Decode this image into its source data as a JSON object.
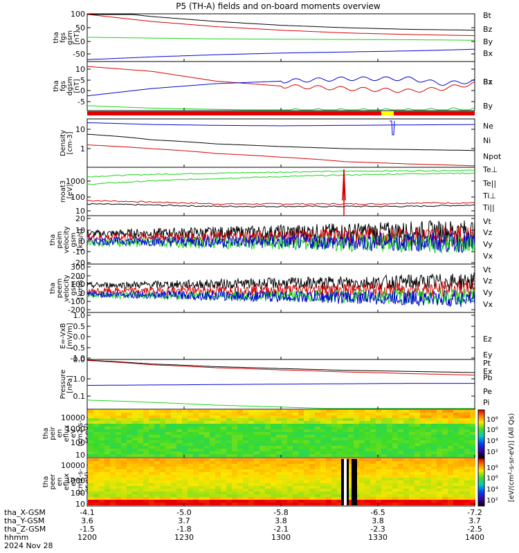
{
  "title": "P5 (TH-A) fields and on-board moments overview",
  "colors": {
    "black": "#000000",
    "red": "#d40000",
    "green": "#18d418",
    "blue": "#0000d4"
  },
  "panels": [
    {
      "id": "fgs_gsm",
      "ylabel": [
        "tha",
        "fgs",
        "gsm",
        "[nT]"
      ],
      "ticks": [
        "100",
        "50",
        "0",
        "-50"
      ],
      "legend": [
        {
          "text": "Bt",
          "color": "#000000"
        },
        {
          "text": "Bz",
          "color": "#d40000"
        },
        {
          "text": "By",
          "color": "#18d418"
        },
        {
          "text": "Bx",
          "color": "#0000d4"
        }
      ]
    },
    {
      "id": "fgs_dbgsm",
      "ylabel": [
        "tha",
        "fgs",
        "dgsm",
        "[nT]"
      ],
      "ticks": [
        "10",
        "5",
        "0",
        "-5"
      ],
      "legend": [
        {
          "text": "Bz",
          "color": "#d40000"
        },
        {
          "text": "Bx",
          "color": "#000000"
        },
        {
          "text": "By",
          "color": "#18d418"
        }
      ]
    },
    {
      "id": "density",
      "ylabel": [
        "Density",
        "[cm-3]"
      ],
      "ticks": [
        "10",
        "1"
      ],
      "legend": [
        {
          "text": "Ne",
          "color": "#d40000"
        },
        {
          "text": "Ni",
          "color": "#000000"
        },
        {
          "text": "Npot",
          "color": "#0000d4"
        }
      ]
    },
    {
      "id": "temperature",
      "ylabel": [
        "moat3",
        "[eV]"
      ],
      "ticks": [
        "1000",
        "100",
        "10"
      ],
      "legend": [
        {
          "text": "Te⊥",
          "color": "#d40000"
        },
        {
          "text": "Te||",
          "color": "#000000"
        },
        {
          "text": "Ti⊥",
          "color": "#18d418"
        },
        {
          "text": "Ti||",
          "color": "#18d418"
        }
      ]
    },
    {
      "id": "peim_velocity",
      "ylabel": [
        "tha",
        "peim",
        "velocity",
        "gsm",
        "[km/s]"
      ],
      "ticks": [
        "20",
        "10",
        "0",
        "-10",
        "-20"
      ],
      "legend": [
        {
          "text": "Vt",
          "color": "#000000"
        },
        {
          "text": "Vz",
          "color": "#d40000"
        },
        {
          "text": "Vy",
          "color": "#18d418"
        },
        {
          "text": "Vx",
          "color": "#0000d4"
        }
      ]
    },
    {
      "id": "peem_velocity",
      "ylabel": [
        "tha",
        "peem",
        "velocity",
        "gsm",
        "[km/s]"
      ],
      "ticks": [
        "300",
        "200",
        "100",
        "0",
        "-100",
        "-200"
      ],
      "legend": [
        {
          "text": "Vt",
          "color": "#000000"
        },
        {
          "text": "Vz",
          "color": "#d40000"
        },
        {
          "text": "Vy",
          "color": "#18d418"
        },
        {
          "text": "Vx",
          "color": "#0000d4"
        }
      ]
    },
    {
      "id": "efield",
      "ylabel": [
        "E=-VxB",
        "[mV/m]"
      ],
      "ticks": [
        "1.0",
        "0.5",
        "0.0",
        "-0.5",
        "-1.0"
      ],
      "legend": [
        {
          "text": "Ez",
          "color": "#d40000"
        },
        {
          "text": "Ey",
          "color": "#18d418"
        },
        {
          "text": "Ex",
          "color": "#0000d4"
        }
      ]
    },
    {
      "id": "pressure",
      "ylabel": [
        "Pressure",
        "[nPa]"
      ],
      "ticks": [
        "0.0",
        "1.0",
        "0.1"
      ],
      "legend": [
        {
          "text": "Pt",
          "color": "#000000"
        },
        {
          "text": "Pb",
          "color": "#d40000"
        },
        {
          "text": "Pe",
          "color": "#18d418"
        },
        {
          "text": "Pi",
          "color": "#0000d4"
        }
      ]
    },
    {
      "id": "peir_spec",
      "ylabel": [
        "tha",
        "peir",
        "en",
        "eflux",
        "eV",
        "(cm2-s-",
        "sr-eV)"
      ],
      "ticks": [
        "10000",
        "1000",
        "100",
        "10"
      ],
      "legend": []
    },
    {
      "id": "peer_spec",
      "ylabel": [
        "tha",
        "peer",
        "en",
        "eflux",
        "eV",
        "(cm2-s-",
        "sr-eV)"
      ],
      "ticks": [
        "10000",
        "1000",
        "100",
        "10"
      ],
      "legend": []
    }
  ],
  "colorbar": {
    "upper_ticks": [
      "10⁸",
      "10⁶",
      "10⁴",
      "10²"
    ],
    "lower_ticks": [
      "10⁸",
      "10⁶",
      "10⁴",
      "10²"
    ],
    "label": "[eV/(cm²-s-sr-eV)] (All Qs)"
  },
  "xaxis": {
    "labels": [
      "tha_X-GSM",
      "tha_Y-GSM",
      "tha_Z-GSM",
      "hhmm",
      "2024 Nov 28"
    ],
    "columns": [
      {
        "x": "-4.1",
        "y": "3.6",
        "z": "-1.5",
        "hhmm": "1200"
      },
      {
        "x": "-5.0",
        "y": "3.7",
        "z": "-1.8",
        "hhmm": "1230"
      },
      {
        "x": "-5.8",
        "y": "3.8",
        "z": "-2.1",
        "hhmm": "1300"
      },
      {
        "x": "-6.5",
        "y": "3.8",
        "z": "-2.3",
        "hhmm": "1330"
      },
      {
        "x": "-7.2",
        "y": "3.7",
        "z": "-2.5",
        "hhmm": "1400"
      }
    ]
  },
  "chart_data": {
    "type": "line",
    "time_range": [
      "12:00",
      "14:00"
    ],
    "series_panels": [
      {
        "panel": "fgs_gsm",
        "ylim": [
          -75,
          100
        ],
        "series": [
          {
            "name": "Bt",
            "x_min": [
              0,
              20,
              40,
              60,
              80,
              100,
              120
            ],
            "values": [
              115,
              90,
              72,
              58,
              49,
              43,
              40
            ]
          },
          {
            "name": "Bz",
            "x_min": [
              0,
              20,
              40,
              60,
              80,
              100,
              120
            ],
            "values": [
              98,
              72,
              53,
              40,
              30,
              24,
              20
            ]
          },
          {
            "name": "By",
            "x_min": [
              0,
              20,
              40,
              60,
              80,
              100,
              120
            ],
            "values": [
              14,
              11,
              8,
              7,
              6,
              5,
              3
            ]
          },
          {
            "name": "Bx",
            "x_min": [
              0,
              20,
              40,
              60,
              80,
              100,
              120
            ],
            "values": [
              -68,
              -58,
              -50,
              -44,
              -40,
              -36,
              -30
            ]
          }
        ]
      },
      {
        "panel": "fgs_dbgsm",
        "ylim": [
          -8,
          12
        ],
        "series": [
          {
            "name": "Bz",
            "x_min": [
              0,
              20,
              40,
              60,
              80,
              100,
              110,
              120
            ],
            "values": [
              10,
              8,
              4,
              2,
              1,
              0,
              1,
              3
            ]
          },
          {
            "name": "Bx",
            "x_min": [
              0,
              20,
              40,
              60,
              80,
              100,
              110,
              120
            ],
            "values": [
              -2,
              1,
              3,
              4,
              5,
              5,
              3,
              4
            ]
          },
          {
            "name": "By",
            "x_min": [
              0,
              20,
              40,
              60,
              80,
              100,
              120
            ],
            "values": [
              -6,
              -7,
              -7.5,
              -8,
              -8,
              -8,
              -7.5
            ]
          }
        ]
      },
      {
        "panel": "density",
        "ylim": [
          0.1,
          40
        ],
        "series": [
          {
            "name": "Ne",
            "x_min": [
              0,
              20,
              40,
              60,
              80,
              100,
              120
            ],
            "values": [
              1.6,
              1.0,
              0.55,
              0.35,
              0.2,
              0.15,
              0.12
            ]
          },
          {
            "name": "Ni",
            "x_min": [
              0,
              20,
              40,
              60,
              80,
              100,
              120
            ],
            "values": [
              6,
              3,
              1.8,
              1.3,
              1.0,
              0.9,
              0.8
            ]
          },
          {
            "name": "Npot",
            "x_min": [
              0,
              20,
              40,
              60,
              80,
              100,
              120
            ],
            "values": [
              25,
              20,
              18,
              17,
              18,
              19,
              20
            ]
          }
        ]
      },
      {
        "panel": "temperature",
        "ylim": [
          10,
          3000
        ],
        "series": [
          {
            "name": "Te⊥",
            "x_min": [
              0,
              20,
              40,
              60,
              80,
              90,
              100,
              120
            ],
            "values": [
              60,
              50,
              40,
              40,
              40,
              40,
              45,
              45
            ]
          },
          {
            "name": "Te||",
            "x_min": [
              0,
              20,
              40,
              60,
              80,
              90,
              100,
              120
            ],
            "values": [
              40,
              35,
              30,
              30,
              30,
              30,
              30,
              35
            ]
          },
          {
            "name": "Ti⊥",
            "x_min": [
              0,
              20,
              40,
              60,
              80,
              100,
              120
            ],
            "values": [
              1000,
              1300,
              1500,
              1700,
              1900,
              2000,
              2100
            ]
          },
          {
            "name": "Ti||",
            "x_min": [
              0,
              20,
              40,
              60,
              80,
              100,
              120
            ],
            "values": [
              400,
              600,
              800,
              1000,
              1200,
              1400,
              1500
            ]
          }
        ]
      },
      {
        "panel": "peim_velocity",
        "ylim": [
          -20,
          20
        ],
        "series": [
          {
            "name": "Vt",
            "x_min": [
              0,
              120
            ],
            "values": [
              5,
              8
            ]
          },
          {
            "name": "Vz",
            "x_min": [
              0,
              120
            ],
            "values": [
              2,
              3
            ]
          },
          {
            "name": "Vy",
            "x_min": [
              0,
              120
            ],
            "values": [
              -2,
              -3
            ]
          },
          {
            "name": "Vx",
            "x_min": [
              0,
              120
            ],
            "values": [
              -1,
              -2
            ]
          }
        ]
      },
      {
        "panel": "peem_velocity",
        "ylim": [
          -200,
          300
        ],
        "series": [
          {
            "name": "Vt",
            "x_min": [
              0,
              120
            ],
            "values": [
              80,
              120
            ]
          },
          {
            "name": "Vz",
            "x_min": [
              0,
              120
            ],
            "values": [
              20,
              40
            ]
          },
          {
            "name": "Vy",
            "x_min": [
              0,
              120
            ],
            "values": [
              -20,
              -40
            ]
          },
          {
            "name": "Vx",
            "x_min": [
              0,
              120
            ],
            "values": [
              -10,
              -60
            ]
          }
        ]
      },
      {
        "panel": "pressure",
        "ylim": [
          0.02,
          3
        ],
        "series": [
          {
            "name": "Pt",
            "x_min": [
              0,
              20,
              40,
              60,
              80,
              100,
              120
            ],
            "values": [
              2.8,
              1.9,
              1.45,
              1.2,
              1.0,
              0.9,
              0.8
            ]
          },
          {
            "name": "Pb",
            "x_min": [
              0,
              20,
              40,
              60,
              80,
              100,
              120
            ],
            "values": [
              2.7,
              1.75,
              1.3,
              1.05,
              0.85,
              0.72,
              0.62
            ]
          },
          {
            "name": "Pe",
            "x_min": [
              0,
              20,
              40,
              60,
              80,
              100,
              120
            ],
            "values": [
              0.05,
              0.04,
              0.03,
              0.025,
              0.02,
              0.02,
              0.02
            ]
          },
          {
            "name": "Pi",
            "x_min": [
              0,
              20,
              40,
              60,
              80,
              100,
              120
            ],
            "values": [
              0.22,
              0.23,
              0.24,
              0.25,
              0.26,
              0.27,
              0.27
            ]
          }
        ]
      }
    ]
  }
}
